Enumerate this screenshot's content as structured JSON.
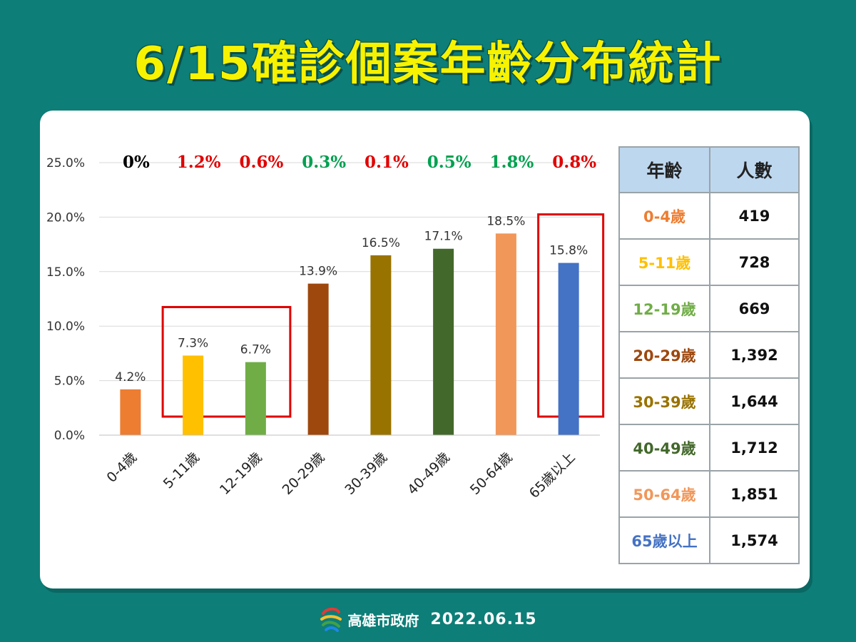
{
  "title": "6/15確診個案年齡分布統計",
  "chart_data": {
    "type": "bar",
    "categories": [
      "0-4歲",
      "5-11歲",
      "12-19歲",
      "20-29歲",
      "30-39歲",
      "40-49歲",
      "50-64歲",
      "65歲以上"
    ],
    "values": [
      4.2,
      7.3,
      6.7,
      13.9,
      16.5,
      17.1,
      18.5,
      15.8
    ],
    "value_labels": [
      "4.2%",
      "7.3%",
      "6.7%",
      "13.9%",
      "16.5%",
      "17.1%",
      "18.5%",
      "15.8%"
    ],
    "colors": [
      "#ed7d31",
      "#ffc000",
      "#70ad47",
      "#9e480e",
      "#997300",
      "#43682b",
      "#f1975a",
      "#4472c4"
    ],
    "change_labels": [
      "0%",
      "1.2%",
      "0.6%",
      "0.3%",
      "0.1%",
      "0.5%",
      "1.8%",
      "0.8%"
    ],
    "change_colors": [
      "#000000",
      "#e00000",
      "#e00000",
      "#00a050",
      "#e00000",
      "#00a050",
      "#00a050",
      "#e00000"
    ],
    "yticks": [
      "0.0%",
      "5.0%",
      "10.0%",
      "15.0%",
      "20.0%",
      "25.0%"
    ],
    "ylim": [
      0,
      25
    ],
    "grid": true,
    "title": "",
    "xlabel": "",
    "ylabel": "",
    "highlight_boxes": [
      {
        "categories": [
          "5-11歲",
          "12-19歲"
        ],
        "color": "#e00000"
      },
      {
        "categories": [
          "65歲以上"
        ],
        "color": "#e00000"
      }
    ]
  },
  "table": {
    "headers": [
      "年齡",
      "人數"
    ],
    "rows": [
      {
        "age": "0-4歲",
        "count": "419",
        "color": "#ed7d31"
      },
      {
        "age": "5-11歲",
        "count": "728",
        "color": "#ffc000"
      },
      {
        "age": "12-19歲",
        "count": "669",
        "color": "#70ad47"
      },
      {
        "age": "20-29歲",
        "count": "1,392",
        "color": "#9e480e"
      },
      {
        "age": "30-39歲",
        "count": "1,644",
        "color": "#997300"
      },
      {
        "age": "40-49歲",
        "count": "1,712",
        "color": "#43682b"
      },
      {
        "age": "50-64歲",
        "count": "1,851",
        "color": "#f1975a"
      },
      {
        "age": "65歲以上",
        "count": "1,574",
        "color": "#4472c4"
      }
    ]
  },
  "footer": {
    "org": "高雄市政府",
    "date": "2022.06.15",
    "logo_icon": "kaohsiung-logo-icon"
  }
}
